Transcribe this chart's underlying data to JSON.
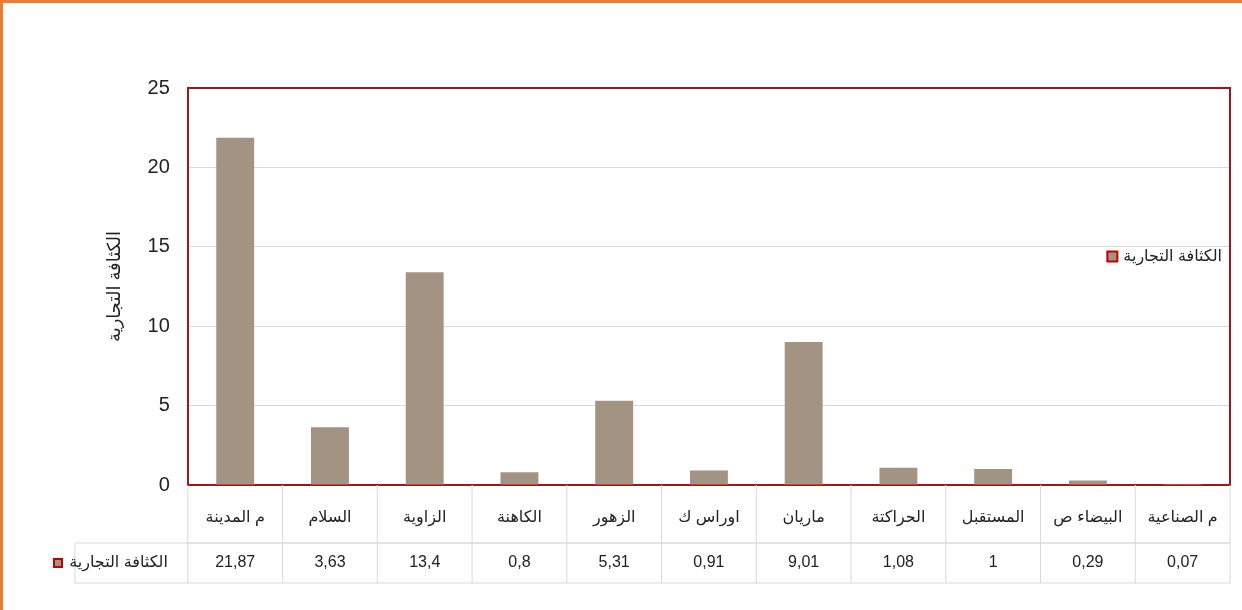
{
  "chart_data": {
    "type": "bar",
    "ylabel": "الكثافة التجارية",
    "categories": [
      "م المدينة",
      "السلام",
      "الزاوية",
      "الكاهنة",
      "الزهور",
      "اوراس ك",
      "ماريان",
      "الحراكتة",
      "المستقبل",
      "البيضاء ص",
      "م الصناعية"
    ],
    "series": [
      {
        "name": "الكثافة التجارية",
        "color": "#a39382",
        "values": [
          21.87,
          3.63,
          13.4,
          0.8,
          5.31,
          0.91,
          9.01,
          1.08,
          1,
          0.29,
          0.07
        ],
        "value_labels": [
          "21,87",
          "3,63",
          "13,4",
          "0,8",
          "5,31",
          "0,91",
          "9,01",
          "1,08",
          "1",
          "0,29",
          "0,07"
        ]
      }
    ],
    "ylim": [
      0,
      25
    ],
    "yticks": [
      0,
      5,
      10,
      15,
      20,
      25
    ],
    "grid": "y",
    "legend": "right",
    "data_labels": true
  }
}
